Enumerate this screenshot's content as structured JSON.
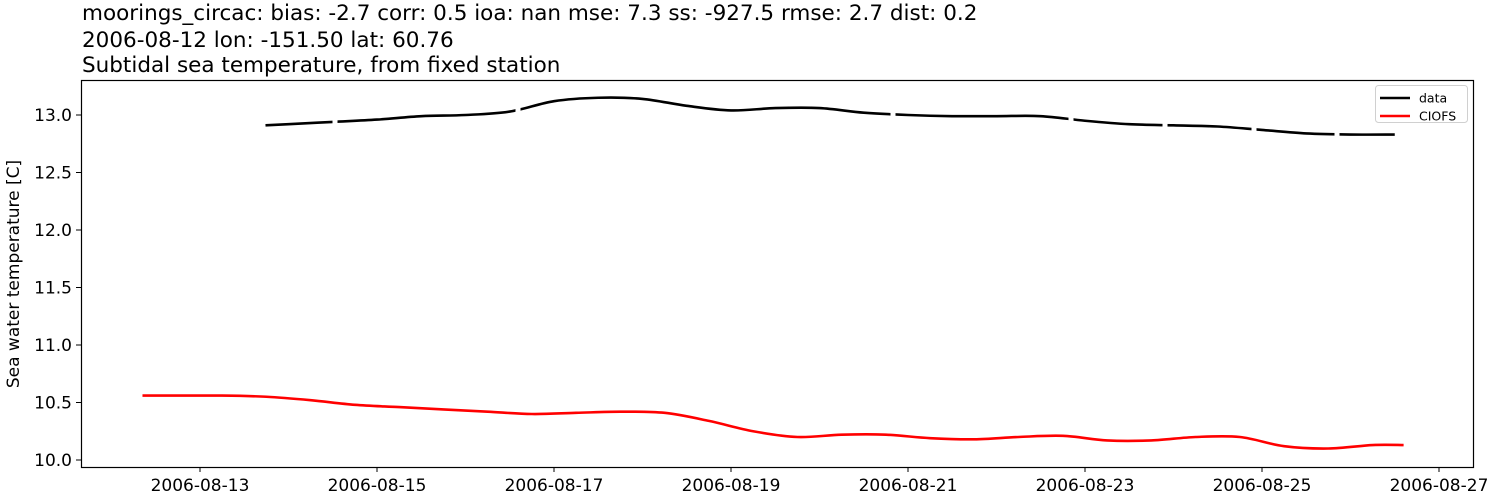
{
  "title": {
    "line1": "moorings_circac: bias: -2.7  corr: 0.5  ioa: nan  mse: 7.3  ss: -927.5  rmse: 2.7  dist: 0.2",
    "line2": "2006-08-12 lon: -151.50 lat: 60.76",
    "line3": "Subtidal sea temperature, from fixed station"
  },
  "legend": {
    "entries": [
      {
        "label": "data",
        "color": "#000000"
      },
      {
        "label": "CIOFS",
        "color": "#ff0000"
      }
    ]
  },
  "chart_data": {
    "type": "line",
    "title": "moorings_circac: bias: -2.7  corr: 0.5  ioa: nan  mse: 7.3  ss: -927.5  rmse: 2.7  dist: 0.2 / 2006-08-12 lon: -151.50 lat: 60.76 / Subtidal sea temperature, from fixed station",
    "xlabel": "",
    "ylabel": "Sea water temperature [C]",
    "ylim": [
      9.95,
      13.3
    ],
    "xlim": [
      "2006-08-12T03:00",
      "2006-08-27T20:00"
    ],
    "grid": false,
    "legend_position": "upper right",
    "x_ticks": [
      "2006-08-13",
      "2006-08-15",
      "2006-08-17",
      "2006-08-19",
      "2006-08-21",
      "2006-08-23",
      "2006-08-25",
      "2006-08-27"
    ],
    "y_ticks": [
      "10.0",
      "10.5",
      "11.0",
      "11.5",
      "12.0",
      "12.5",
      "13.0"
    ],
    "series": [
      {
        "name": "data",
        "color": "#000000",
        "note": "gaps in record (dashed appearance)",
        "x_day": [
          13.74,
          14.0,
          14.5,
          15.0,
          15.5,
          16.0,
          16.5,
          17.0,
          17.5,
          18.0,
          18.5,
          19.0,
          19.5,
          20.0,
          20.5,
          21.0,
          21.5,
          22.0,
          22.5,
          23.0,
          23.5,
          24.0,
          24.5,
          25.0,
          25.5,
          26.0,
          26.5
        ],
        "values": [
          12.91,
          12.92,
          12.94,
          12.96,
          12.99,
          13.0,
          13.03,
          13.12,
          13.15,
          13.14,
          13.08,
          13.04,
          13.06,
          13.06,
          13.02,
          13.0,
          12.99,
          12.99,
          12.99,
          12.95,
          12.92,
          12.91,
          12.9,
          12.87,
          12.84,
          12.83,
          12.83
        ]
      },
      {
        "name": "CIOFS",
        "color": "#ff0000",
        "x_day": [
          12.35,
          12.75,
          13.25,
          13.75,
          14.25,
          14.75,
          15.25,
          15.75,
          16.25,
          16.75,
          17.25,
          17.75,
          18.25,
          18.75,
          19.25,
          19.75,
          20.25,
          20.75,
          21.25,
          21.75,
          22.25,
          22.75,
          23.25,
          23.75,
          24.25,
          24.75,
          25.25,
          25.75,
          26.25,
          26.6
        ],
        "values": [
          10.56,
          10.56,
          10.56,
          10.55,
          10.52,
          10.48,
          10.46,
          10.44,
          10.42,
          10.4,
          10.41,
          10.42,
          10.41,
          10.34,
          10.25,
          10.2,
          10.22,
          10.22,
          10.19,
          10.18,
          10.2,
          10.21,
          10.17,
          10.17,
          10.2,
          10.2,
          10.12,
          10.1,
          10.13,
          10.13
        ]
      }
    ]
  }
}
